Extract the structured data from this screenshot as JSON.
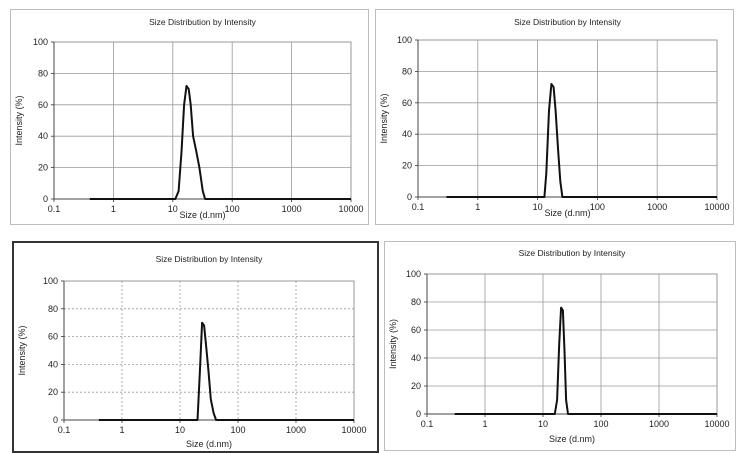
{
  "figure": {
    "background": "#ffffff",
    "line_color": "#111111",
    "grid_color": "#9a9a9a",
    "frame_color": "#bdbdbd",
    "frame_color_dark": "#333333"
  },
  "chart_data": [
    {
      "type": "line",
      "title": "Size Distribution by Intensity",
      "xlabel": "Size (d.nm)",
      "ylabel": "Intensity (%)",
      "xscale": "log",
      "xlim": [
        0.1,
        10000
      ],
      "ylim": [
        0,
        100
      ],
      "xticks": [
        0.1,
        1,
        10,
        100,
        1000,
        10000
      ],
      "xtick_labels": [
        "0.1",
        "1",
        "10",
        "100",
        "1000",
        "10000"
      ],
      "yticks": [
        0,
        20,
        40,
        60,
        80,
        100
      ],
      "ytick_labels": [
        "0",
        "20",
        "40",
        "60",
        "80",
        "100"
      ],
      "grid": true,
      "grid_style": "solid",
      "series": [
        {
          "x": [
            0.4,
            11,
            12.5,
            14,
            15.5,
            17,
            18.5,
            20,
            22,
            25,
            28,
            32,
            35,
            10000
          ],
          "y": [
            0,
            0,
            5,
            30,
            60,
            72,
            70,
            60,
            40,
            30,
            20,
            5,
            0,
            0
          ]
        }
      ]
    },
    {
      "type": "line",
      "title": "Size Distribution by Intensity",
      "xlabel": "Size (d.nm)",
      "ylabel": "Intensity (%)",
      "xscale": "log",
      "xlim": [
        0.1,
        10000
      ],
      "ylim": [
        0,
        100
      ],
      "xticks": [
        0.1,
        1,
        10,
        100,
        1000,
        10000
      ],
      "xtick_labels": [
        "0.1",
        "1",
        "10",
        "100",
        "1000",
        "10000"
      ],
      "yticks": [
        0,
        20,
        40,
        60,
        80,
        100
      ],
      "ytick_labels": [
        "0",
        "20",
        "40",
        "60",
        "80",
        "100"
      ],
      "grid": true,
      "grid_style": "solid",
      "series": [
        {
          "x": [
            0.3,
            13,
            14,
            15.5,
            17,
            18.5,
            20,
            22,
            24,
            26,
            10000
          ],
          "y": [
            0,
            0,
            15,
            55,
            72,
            70,
            55,
            30,
            10,
            0,
            0
          ]
        }
      ]
    },
    {
      "type": "line",
      "title": "Size Distribution by Intensity",
      "xlabel": "Size (d.nm)",
      "ylabel": "Intensity (%)",
      "xscale": "log",
      "xlim": [
        0.1,
        10000
      ],
      "ylim": [
        0,
        100
      ],
      "xticks": [
        0.1,
        1,
        10,
        100,
        1000,
        10000
      ],
      "xtick_labels": [
        "0.1",
        "1",
        "10",
        "100",
        "1000",
        "10000"
      ],
      "yticks": [
        0,
        20,
        40,
        60,
        80,
        100
      ],
      "ytick_labels": [
        "0",
        "20",
        "40",
        "60",
        "80",
        "100"
      ],
      "grid": true,
      "grid_style": "dashed",
      "series": [
        {
          "x": [
            0.4,
            20,
            22,
            24,
            26,
            28,
            31,
            34,
            38,
            42,
            10000
          ],
          "y": [
            0,
            0,
            35,
            70,
            68,
            55,
            35,
            15,
            5,
            0,
            0
          ]
        }
      ]
    },
    {
      "type": "line",
      "title": "Size Distribution by Intensity",
      "xlabel": "Size (d.nm)",
      "ylabel": "Intensity (%)",
      "xscale": "log",
      "xlim": [
        0.1,
        10000
      ],
      "ylim": [
        0,
        100
      ],
      "xticks": [
        0.1,
        1,
        10,
        100,
        1000,
        10000
      ],
      "xtick_labels": [
        "0.1",
        "1",
        "10",
        "100",
        "1000",
        "10000"
      ],
      "yticks": [
        0,
        20,
        40,
        60,
        80,
        100
      ],
      "ytick_labels": [
        "0",
        "20",
        "40",
        "60",
        "80",
        "100"
      ],
      "grid": true,
      "grid_style": "solid",
      "series": [
        {
          "x": [
            0.3,
            16,
            17.5,
            19,
            20.5,
            22,
            23.5,
            25,
            27,
            10000
          ],
          "y": [
            0,
            0,
            10,
            50,
            76,
            74,
            45,
            10,
            0,
            0
          ]
        }
      ]
    }
  ]
}
